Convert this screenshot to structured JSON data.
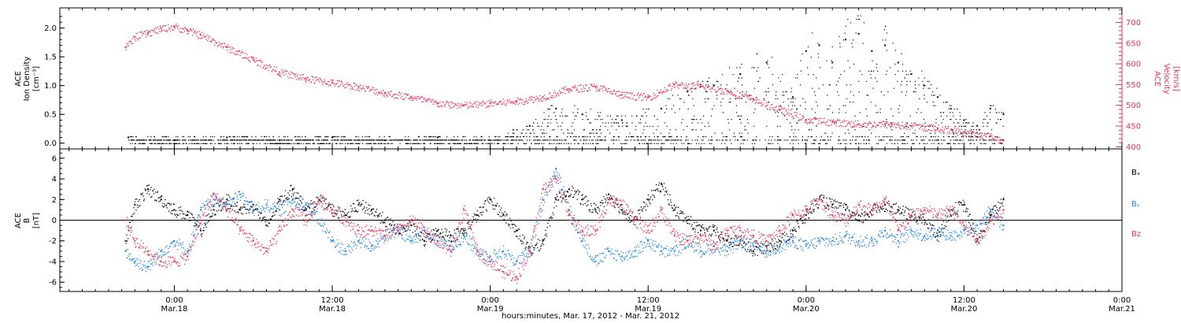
{
  "colors": {
    "black": "#000000",
    "pink": "#e8325a",
    "blue": "#1f86e6"
  },
  "chart_data": [
    {
      "type": "scatter",
      "panel": "top",
      "left_axis": {
        "label_line1": "ACE",
        "label_line2": "Ion Density",
        "label_line3": "[cm⁻³]",
        "ylim": [
          -0.1,
          2.35
        ],
        "ticks": [
          0.0,
          0.5,
          1.0,
          1.5,
          2.0
        ],
        "tick_labels": [
          "0.0",
          "0.5",
          "1.0",
          "1.5",
          "2.0"
        ]
      },
      "right_axis": {
        "label_line1": "ACE",
        "label_line2": "Velocity",
        "label_line3": "[km/s]",
        "ylim": [
          395,
          735
        ],
        "ticks": [
          400,
          450,
          500,
          550,
          600,
          650,
          700
        ],
        "tick_labels": [
          "400",
          "450",
          "500",
          "550",
          "600",
          "650",
          "700"
        ]
      },
      "x_hours_since_mar17_0000": [
        20.3,
        24,
        30,
        36,
        42,
        48,
        54,
        60,
        66,
        72,
        78,
        84,
        87
      ],
      "series": [
        {
          "name": "",
          "axis": "left",
          "color": "black",
          "x": [
            20.5,
            24,
            28,
            32,
            36,
            40,
            44,
            48,
            51,
            53,
            55,
            58,
            61,
            63,
            65,
            67,
            69,
            71,
            72,
            73,
            74,
            75,
            76,
            77,
            78,
            79,
            80,
            81,
            82,
            83,
            84,
            85,
            86,
            87
          ],
          "y": [
            0.1,
            0.05,
            0.1,
            0.05,
            0.1,
            0.05,
            0.1,
            0.05,
            0.3,
            0.6,
            0.5,
            0.4,
            0.6,
            0.9,
            1.0,
            1.2,
            1.4,
            0.8,
            1.6,
            1.7,
            1.4,
            1.8,
            1.9,
            1.6,
            1.7,
            1.4,
            1.2,
            1.0,
            0.8,
            0.6,
            0.4,
            0.3,
            0.6,
            0.5
          ]
        },
        {
          "name": "",
          "axis": "right",
          "color": "pink",
          "x": [
            20.3,
            21,
            22,
            23,
            24,
            25,
            26,
            28,
            30,
            32,
            34,
            36,
            38,
            40,
            42,
            44,
            46,
            48,
            50,
            52,
            54,
            56,
            58,
            60,
            62,
            64,
            66,
            68,
            70,
            72,
            74,
            76,
            78,
            80,
            82,
            84,
            86,
            87
          ],
          "y": [
            640,
            665,
            675,
            685,
            690,
            680,
            670,
            640,
            610,
            580,
            565,
            555,
            545,
            530,
            520,
            505,
            500,
            505,
            510,
            520,
            540,
            545,
            525,
            520,
            550,
            545,
            535,
            515,
            490,
            465,
            460,
            455,
            455,
            450,
            445,
            435,
            425,
            415
          ]
        }
      ]
    },
    {
      "type": "scatter",
      "panel": "bottom",
      "left_axis": {
        "label_line1": "ACE",
        "label_line2": "B",
        "label_line3": "[nT]",
        "ylim": [
          -6.9,
          6.9
        ],
        "ticks": [
          -6,
          -4,
          -2,
          0,
          2,
          4,
          6
        ],
        "tick_labels": [
          "-6",
          "-4",
          "-2",
          "0",
          "2",
          "4",
          "6"
        ]
      },
      "legend": [
        "Bₓ",
        "Bᵧ",
        "Bz"
      ],
      "series": [
        {
          "name": "Bₓ",
          "color": "black",
          "x": [
            20.3,
            21,
            22,
            23,
            24,
            25,
            26,
            27,
            28,
            29,
            30,
            31,
            32,
            33,
            34,
            35,
            36,
            37,
            38,
            39,
            40,
            41,
            42,
            43,
            44,
            45,
            46,
            47,
            48,
            49,
            50,
            51,
            52,
            53,
            54,
            55,
            56,
            57,
            58,
            59,
            60,
            61,
            62,
            63,
            64,
            65,
            66,
            67,
            68,
            69,
            70,
            71,
            72,
            73,
            74,
            75,
            76,
            77,
            78,
            79,
            80,
            81,
            82,
            83,
            84,
            85,
            86,
            87
          ],
          "y": [
            -2.0,
            1.5,
            3.0,
            2.0,
            1.0,
            0.5,
            -1.0,
            1.0,
            2.0,
            1.0,
            1.5,
            -0.5,
            2.0,
            3.0,
            1.0,
            2.0,
            1.0,
            0.5,
            1.5,
            1.0,
            0.0,
            -1.0,
            -0.5,
            -2.0,
            -1.0,
            -1.5,
            -1.0,
            0.5,
            2.0,
            0.5,
            -1.0,
            -3.0,
            -2.0,
            2.0,
            3.0,
            2.0,
            1.0,
            2.5,
            1.0,
            0.0,
            2.0,
            3.5,
            1.0,
            0.0,
            -1.0,
            -1.0,
            -2.0,
            -2.0,
            -3.0,
            -2.5,
            -2.0,
            -1.0,
            0.5,
            2.0,
            1.5,
            1.0,
            0.0,
            1.0,
            1.5,
            1.0,
            0.5,
            0.0,
            -1.5,
            1.0,
            1.5,
            -2.0,
            0.5,
            2.0
          ]
        },
        {
          "name": "Bᵧ",
          "color": "blue",
          "x": [
            20.3,
            21,
            22,
            23,
            24,
            25,
            26,
            27,
            28,
            29,
            30,
            31,
            32,
            33,
            34,
            35,
            36,
            37,
            38,
            39,
            40,
            41,
            42,
            43,
            44,
            45,
            46,
            47,
            48,
            49,
            50,
            51,
            52,
            53,
            54,
            55,
            56,
            57,
            58,
            59,
            60,
            61,
            62,
            63,
            64,
            65,
            66,
            67,
            68,
            69,
            70,
            71,
            72,
            73,
            74,
            75,
            76,
            77,
            78,
            79,
            80,
            81,
            82,
            83,
            84,
            85,
            86,
            87
          ],
          "y": [
            -3.0,
            -4.0,
            -4.5,
            -3.0,
            -2.0,
            -3.0,
            1.0,
            2.0,
            1.5,
            2.5,
            1.0,
            1.5,
            1.0,
            2.0,
            1.5,
            0.0,
            -2.0,
            -3.0,
            -2.0,
            -2.5,
            -1.5,
            -1.0,
            -2.0,
            -1.0,
            -2.0,
            -2.5,
            -1.5,
            -3.0,
            -3.5,
            -3.0,
            -4.0,
            -3.0,
            2.0,
            5.0,
            1.0,
            -2.0,
            -4.0,
            -3.0,
            -3.5,
            -3.0,
            -2.0,
            -3.0,
            -3.0,
            -2.0,
            -3.0,
            -2.5,
            -3.0,
            -2.0,
            -2.5,
            -3.0,
            -2.5,
            -2.0,
            -2.5,
            -2.0,
            -2.0,
            -1.5,
            -2.0,
            -2.0,
            -1.0,
            -2.0,
            -1.0,
            -1.5,
            -1.0,
            -1.5,
            -1.0,
            -0.5,
            1.0,
            -0.5
          ]
        },
        {
          "name": "Bz",
          "color": "pink",
          "x": [
            20.3,
            21,
            22,
            23,
            24,
            25,
            26,
            27,
            28,
            29,
            30,
            31,
            32,
            33,
            34,
            35,
            36,
            37,
            38,
            39,
            40,
            41,
            42,
            43,
            44,
            45,
            46,
            47,
            48,
            49,
            50,
            51,
            52,
            53,
            54,
            55,
            56,
            57,
            58,
            59,
            60,
            61,
            62,
            63,
            64,
            65,
            66,
            67,
            68,
            69,
            70,
            71,
            72,
            73,
            74,
            75,
            76,
            77,
            78,
            79,
            80,
            81,
            82,
            83,
            84,
            85,
            86,
            87
          ],
          "y": [
            0.0,
            -2.0,
            -3.0,
            -4.0,
            -4.0,
            -3.5,
            0.0,
            2.5,
            1.0,
            -1.0,
            -2.0,
            -3.0,
            -1.0,
            1.0,
            0.0,
            2.0,
            1.0,
            0.0,
            -1.0,
            -1.0,
            -1.5,
            -1.0,
            0.0,
            -1.0,
            -2.0,
            -3.0,
            1.0,
            -3.0,
            -4.0,
            -5.0,
            -5.5,
            -3.0,
            3.0,
            4.0,
            0.5,
            -1.0,
            -1.0,
            2.0,
            1.5,
            0.0,
            -1.0,
            1.0,
            -1.5,
            -2.0,
            -1.5,
            -2.5,
            -1.0,
            -1.0,
            -1.5,
            -2.0,
            -1.0,
            0.5,
            1.0,
            2.0,
            0.5,
            0.0,
            1.5,
            1.0,
            2.0,
            -1.0,
            0.5,
            1.0,
            0.5,
            1.0,
            -0.5,
            -2.0,
            0.0,
            1.0
          ]
        }
      ]
    }
  ],
  "x_axis": {
    "xlim_hours": [
      15.3,
      96
    ],
    "ticks_hours": [
      24,
      36,
      48,
      60,
      72,
      84,
      96
    ],
    "tick_time": [
      "0:00",
      "12:00",
      "0:00",
      "12:00",
      "0:00",
      "12:00",
      "0:00"
    ],
    "tick_date": [
      "Mar.18",
      "Mar.18",
      "Mar.19",
      "Mar.19",
      "Mar.20",
      "Mar.20",
      "Mar.21"
    ],
    "title": "hours:minutes, Mar. 17, 2012 - Mar. 21, 2012"
  }
}
